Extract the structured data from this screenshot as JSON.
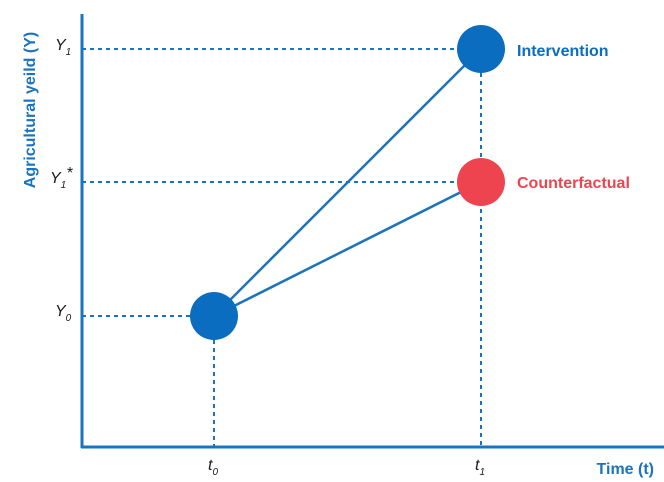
{
  "colors": {
    "axis": "#1a73bf",
    "line": "#1a73bf",
    "dash": "#1a73bf",
    "intervention": "#0a6dbf",
    "counterfactual": "#ee4450",
    "baseline": "#0a6dbf"
  },
  "axes": {
    "y_title": "Agricultural yeild (Y)",
    "x_title": "Time (t)"
  },
  "y_ticks": [
    {
      "id": "y1",
      "base": "Y",
      "sub": "1",
      "sup": ""
    },
    {
      "id": "y1star",
      "base": "Y",
      "sub": "1",
      "sup": "*"
    },
    {
      "id": "y0",
      "base": "Y",
      "sub": "0",
      "sup": ""
    }
  ],
  "x_ticks": [
    {
      "id": "t0",
      "base": "t",
      "sub": "0"
    },
    {
      "id": "t1",
      "base": "t",
      "sub": "1"
    }
  ],
  "labels": {
    "intervention": "Intervention",
    "counterfactual": "Counterfactual"
  }
}
